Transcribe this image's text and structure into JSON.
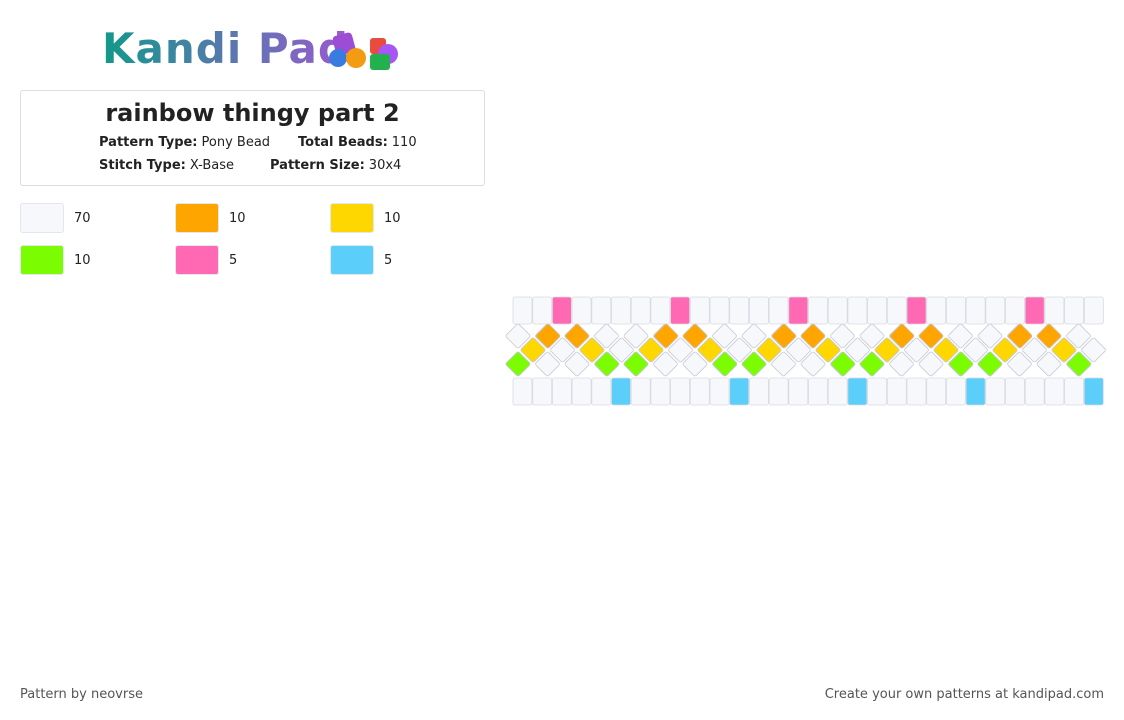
{
  "logo": "Kandi Pad",
  "title": "rainbow thingy part 2",
  "info": [
    {
      "label": "Pattern Type:",
      "value": "Pony Bead"
    },
    {
      "label": "Total Beads:",
      "value": "110"
    },
    {
      "label": "Stitch Type:",
      "value": "X-Base"
    },
    {
      "label": "Pattern Size:",
      "value": "30x4"
    }
  ],
  "palette": [
    {
      "color": "#f7f8fc",
      "count": "70"
    },
    {
      "color": "#ffa500",
      "count": "10"
    },
    {
      "color": "#ffd700",
      "count": "10"
    },
    {
      "color": "#7cfc00",
      "count": "10"
    },
    {
      "color": "#ff69b4",
      "count": "5"
    },
    {
      "color": "#5bcefa",
      "count": "5"
    }
  ],
  "footer": {
    "left": "Pattern by neovrse",
    "right": "Create your own patterns at kandipad.com"
  }
}
